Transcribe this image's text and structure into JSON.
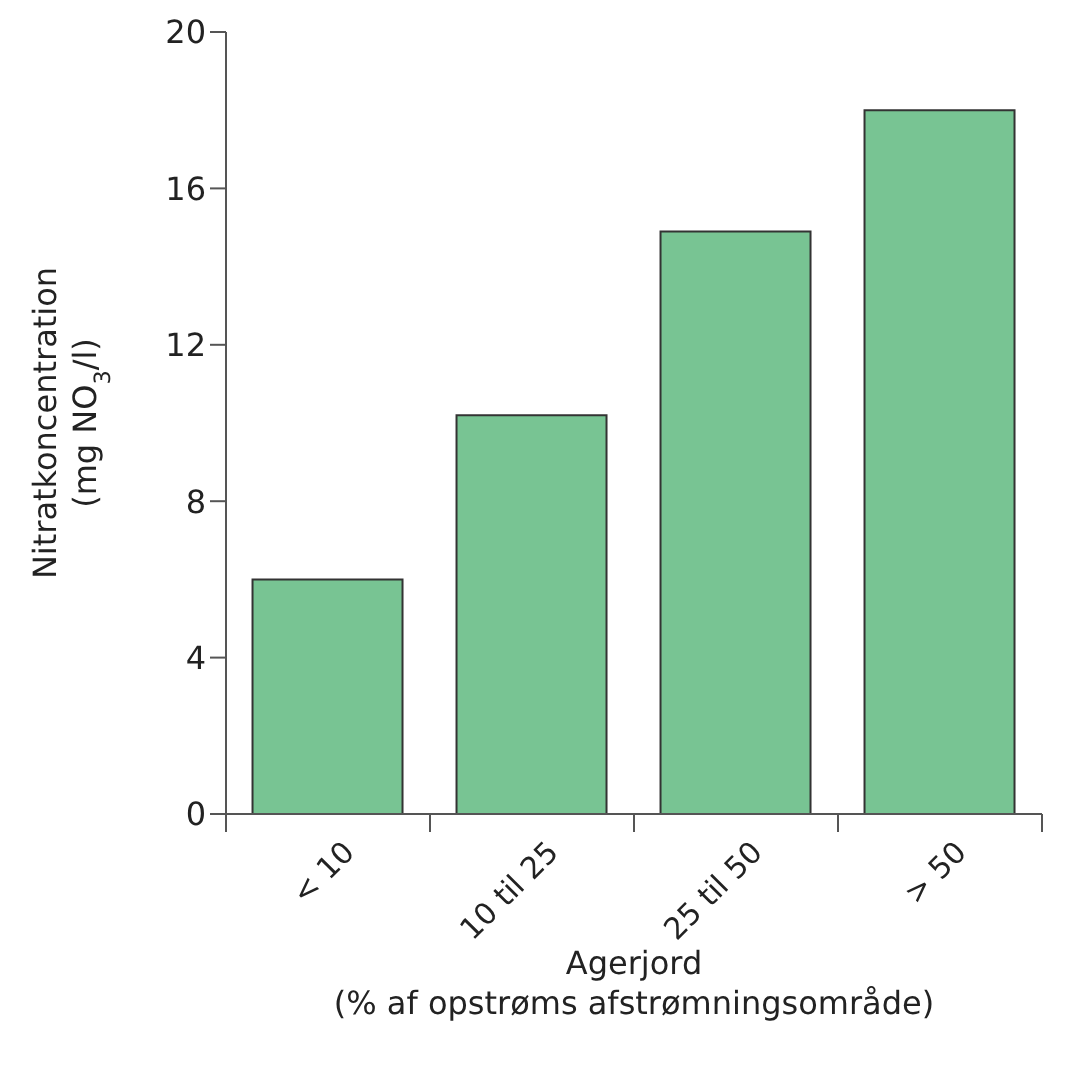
{
  "chart_data": {
    "type": "bar",
    "categories": [
      "< 10",
      "10 til 25",
      "25 til 50",
      "> 50"
    ],
    "values": [
      6.0,
      10.2,
      14.9,
      18.0
    ],
    "color": "#78c493",
    "xlabel": "Agerjord\n(% af opstrøms afstrømningsområde)",
    "ylabel": "Nitratkoncentration\n(mg NO$_{3}$/l)",
    "ylim": [
      0,
      20
    ],
    "yticks": [
      0,
      4,
      8,
      12,
      16,
      20
    ],
    "grid": false
  }
}
